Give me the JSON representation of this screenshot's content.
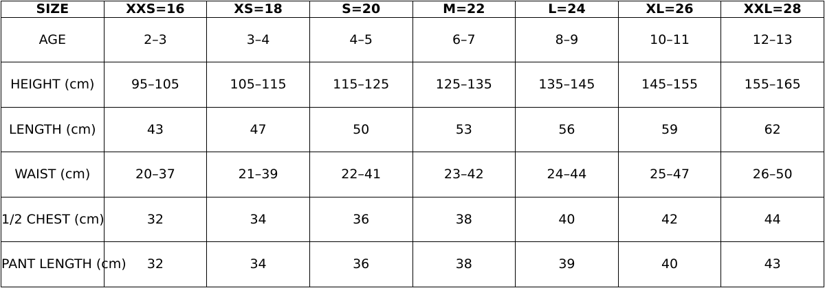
{
  "chart_data": {
    "type": "table",
    "columns": [
      "SIZE",
      "XXS=16",
      "XS=18",
      "S=20",
      "M=22",
      "L=24",
      "XL=26",
      "XXL=28"
    ],
    "rows": [
      {
        "label": "AGE",
        "values": [
          "2–3",
          "3–4",
          "4–5",
          "6–7",
          "8–9",
          "10–11",
          "12–13"
        ]
      },
      {
        "label": "HEIGHT (cm)",
        "values": [
          "95–105",
          "105–115",
          "115–125",
          "125–135",
          "135–145",
          "145–155",
          "155–165"
        ]
      },
      {
        "label": "LENGTH (cm)",
        "values": [
          "43",
          "47",
          "50",
          "53",
          "56",
          "59",
          "62"
        ]
      },
      {
        "label": "WAIST (cm)",
        "values": [
          "20–37",
          "21–39",
          "22–41",
          "23–42",
          "24–44",
          "25–47",
          "26–50"
        ]
      },
      {
        "label": "1/2 CHEST (cm)",
        "values": [
          "32",
          "34",
          "36",
          "38",
          "40",
          "42",
          "44"
        ]
      },
      {
        "label": "PANT LENGTH (cm)",
        "values": [
          "32",
          "34",
          "36",
          "38",
          "39",
          "40",
          "43"
        ]
      }
    ],
    "layout": {
      "grid": "on",
      "header_row_bold": true,
      "first_column_role": "measurement-labels"
    }
  },
  "colors": {
    "border": "#000000",
    "text": "#000000",
    "background": "#ffffff"
  }
}
